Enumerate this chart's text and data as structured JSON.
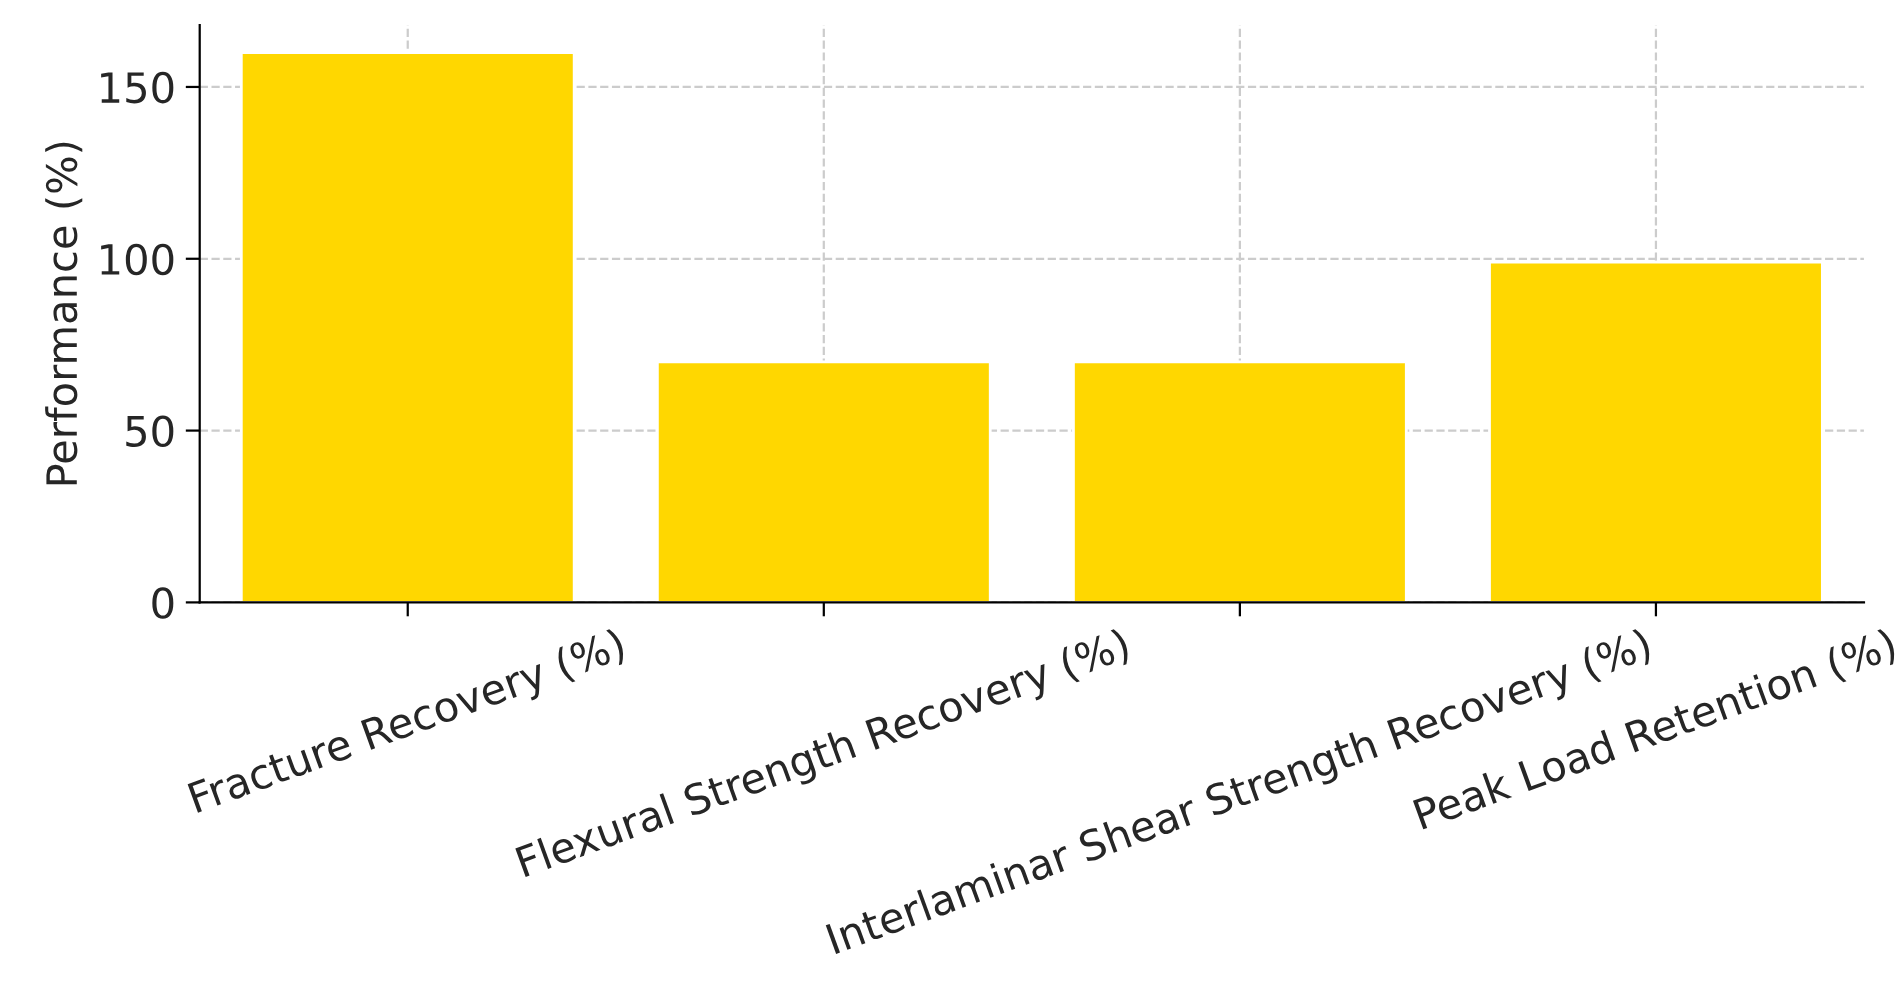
{
  "chart_data": {
    "type": "bar",
    "ylabel": "Performance (%)",
    "categories": [
      "Fracture Recovery (%)",
      "Flexural Strength Recovery (%)",
      "Interlaminar Shear Strength Recovery (%)",
      "Peak Load Retention (%)"
    ],
    "values": [
      160,
      70,
      70,
      99
    ],
    "color": "#ffd700",
    "ylim": [
      0,
      168
    ],
    "yticks": [
      0,
      50,
      100,
      150
    ],
    "grid": true
  }
}
